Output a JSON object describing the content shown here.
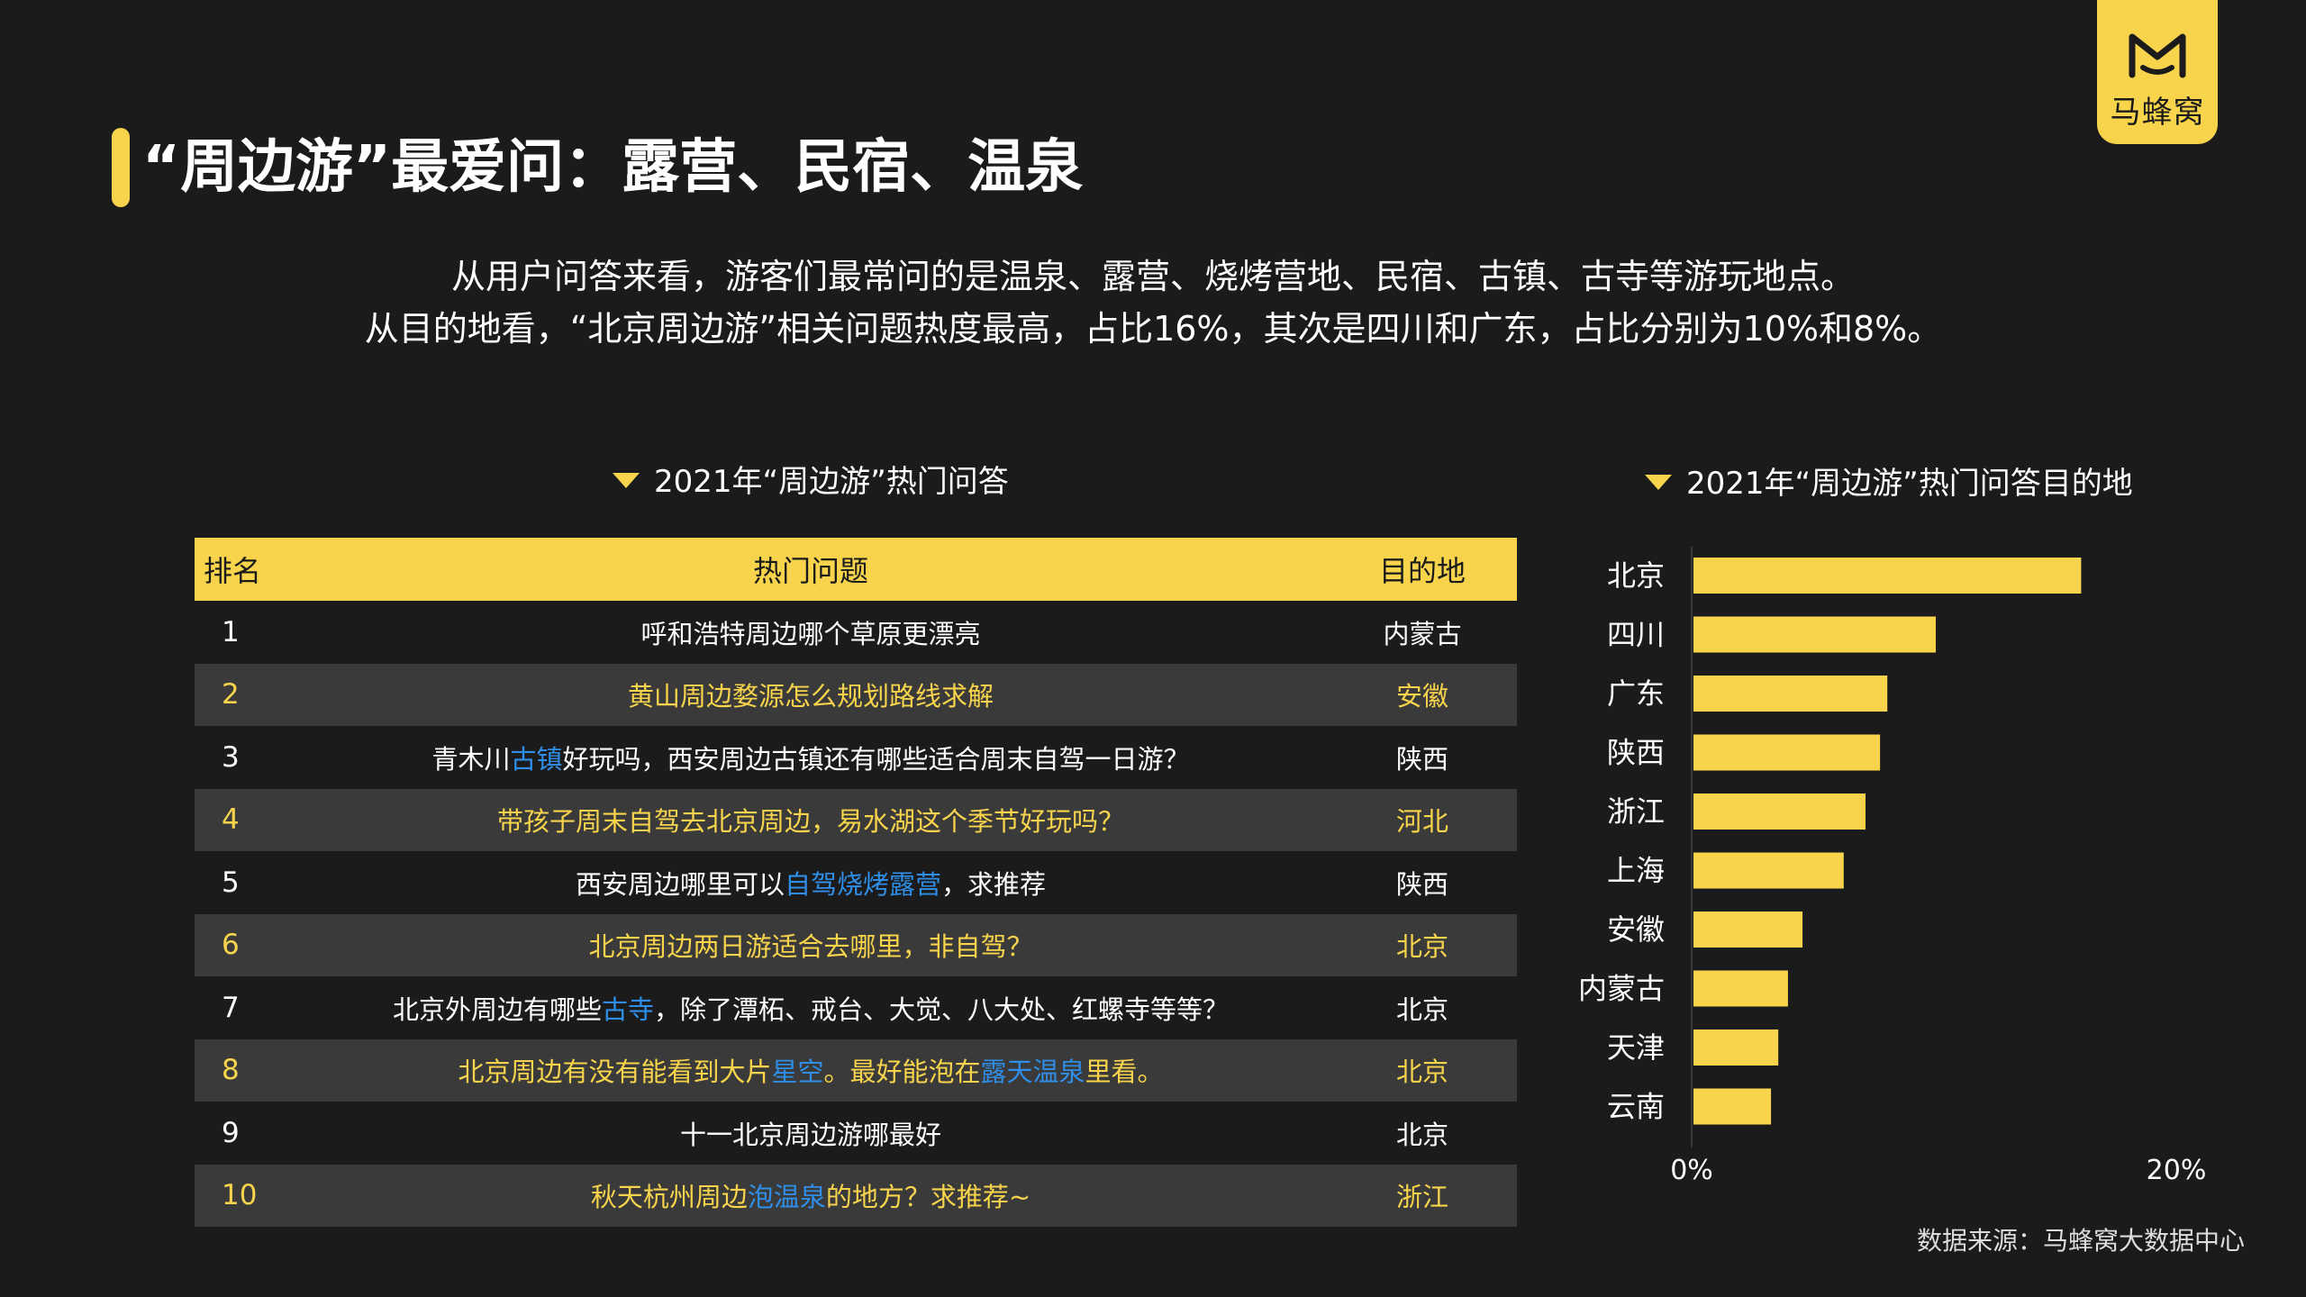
{
  "brand": {
    "name": "马蜂窝",
    "icon": "mafengwo-m-icon",
    "color": "#f7d44c"
  },
  "title": "“周边游”最爱问：露营、民宿、温泉",
  "intro": {
    "line1": "从用户问答来看，游客们最常问的是温泉、露营、烧烤营地、民宿、古镇、古寺等游玩地点。",
    "line2": "从目的地看，“北京周边游”相关问题热度最高，占比16%，其次是四川和广东，占比分别为10%和8%。"
  },
  "table": {
    "caption": "2021年“周边游”热门问答",
    "headers": {
      "rank": "排名",
      "question": "热门问题",
      "destination": "目的地"
    },
    "rows": [
      {
        "rank": "1",
        "parts": [
          {
            "t": "呼和浩特周边哪个草原更漂亮",
            "h": false
          }
        ],
        "destination": "内蒙古"
      },
      {
        "rank": "2",
        "parts": [
          {
            "t": "黄山周边婺源怎么规划路线求解",
            "h": false
          }
        ],
        "destination": "安徽"
      },
      {
        "rank": "3",
        "parts": [
          {
            "t": "青木川",
            "h": false
          },
          {
            "t": "古镇",
            "h": true
          },
          {
            "t": "好玩吗，西安周边古镇还有哪些适合周末自驾一日游？",
            "h": false
          }
        ],
        "destination": "陕西"
      },
      {
        "rank": "4",
        "parts": [
          {
            "t": "带孩子周末自驾去北京周边，易水湖这个季节好玩吗？",
            "h": false
          }
        ],
        "destination": "河北"
      },
      {
        "rank": "5",
        "parts": [
          {
            "t": "西安周边哪里可以",
            "h": false
          },
          {
            "t": "自驾烧烤露营",
            "h": true
          },
          {
            "t": "，求推荐",
            "h": false
          }
        ],
        "destination": "陕西"
      },
      {
        "rank": "6",
        "parts": [
          {
            "t": "北京周边两日游适合去哪里，非自驾？",
            "h": false
          }
        ],
        "destination": "北京"
      },
      {
        "rank": "7",
        "parts": [
          {
            "t": "北京外周边有哪些",
            "h": false
          },
          {
            "t": "古寺",
            "h": true
          },
          {
            "t": "，除了潭柘、戒台、大觉、八大处、红螺寺等等？",
            "h": false
          }
        ],
        "destination": "北京"
      },
      {
        "rank": "8",
        "parts": [
          {
            "t": "北京周边有没有能看到大片",
            "h": false
          },
          {
            "t": "星空",
            "h": true
          },
          {
            "t": "。最好能泡在",
            "h": false
          },
          {
            "t": "露天温泉",
            "h": true
          },
          {
            "t": "里看。",
            "h": false
          }
        ],
        "destination": "北京"
      },
      {
        "rank": "9",
        "parts": [
          {
            "t": "十一北京周边游哪最好",
            "h": false
          }
        ],
        "destination": "北京"
      },
      {
        "rank": "10",
        "parts": [
          {
            "t": "秋天杭州周边",
            "h": false
          },
          {
            "t": "泡温泉",
            "h": true
          },
          {
            "t": "的地方？求推荐~",
            "h": false
          }
        ],
        "destination": "浙江"
      }
    ]
  },
  "chart_title": "2021年“周边游”热门问答目的地",
  "chart_data": {
    "type": "bar",
    "orientation": "horizontal",
    "categories": [
      "北京",
      "四川",
      "广东",
      "陕西",
      "浙江",
      "上海",
      "安徽",
      "内蒙古",
      "天津",
      "云南"
    ],
    "values": [
      16,
      10,
      8,
      7.7,
      7.1,
      6.2,
      4.5,
      3.9,
      3.5,
      3.2
    ],
    "unit": "%",
    "xlim": [
      0,
      20
    ],
    "xtick_labels": [
      "0%",
      "20%"
    ],
    "bar_color": "#f7d44c",
    "grid": false
  },
  "source": "数据来源：马蜂窝大数据中心"
}
